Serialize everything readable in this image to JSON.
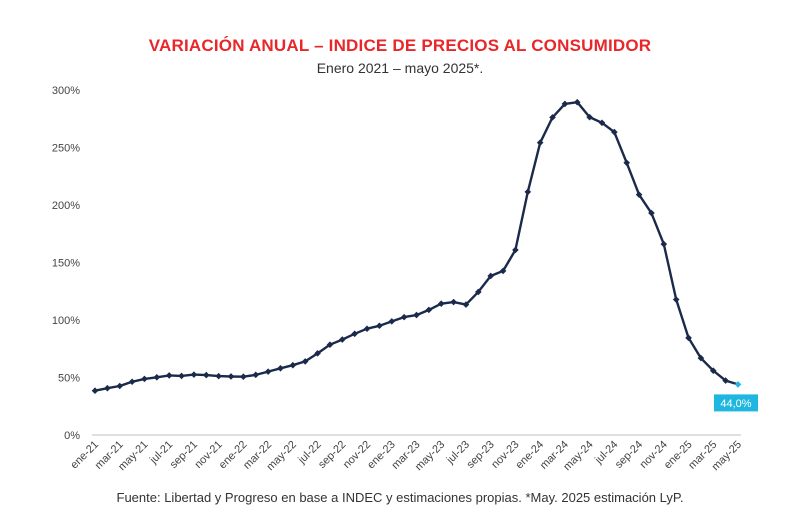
{
  "chart_data": {
    "type": "line",
    "title": "VARIACIÓN ANUAL – INDICE DE PRECIOS AL CONSUMIDOR",
    "subtitle": "Enero 2021 – mayo 2025*.",
    "source": "Fuente: Libertad y Progreso en base a INDEC y estimaciones propias. *May. 2025 estimación LyP.",
    "ylim": [
      0,
      300
    ],
    "ytick_labels": [
      "0%",
      "50%",
      "100%",
      "150%",
      "200%",
      "250%",
      "300%"
    ],
    "xtick_labels": [
      "ene-21",
      "mar-21",
      "may-21",
      "jul-21",
      "sep-21",
      "nov-21",
      "ene-22",
      "mar-22",
      "may-22",
      "jul-22",
      "sep-22",
      "nov-22",
      "ene-23",
      "mar-23",
      "may-23",
      "jul-23",
      "sep-23",
      "nov-23",
      "ene-24",
      "mar-24",
      "may-24",
      "jul-24",
      "sep-24",
      "nov-24",
      "ene-25",
      "mar-25",
      "may-25"
    ],
    "grid": false,
    "line_color": "#1b2a4a",
    "highlight_color": "#1fb6e0",
    "series": [
      {
        "values": [
          38.5,
          40.7,
          42.6,
          46.3,
          48.8,
          50.2,
          51.8,
          51.4,
          52.5,
          52.1,
          51.2,
          50.9,
          50.7,
          52.3,
          55.1,
          58.0,
          60.7,
          64.0,
          71.0,
          78.5,
          83.0,
          88.0,
          92.4,
          95.0,
          98.8,
          102.5,
          104.3,
          108.8,
          114.2,
          115.6,
          113.4,
          124.4,
          138.3,
          142.7,
          160.9,
          211.4,
          254.2,
          276.2,
          287.9,
          289.4,
          276.4,
          271.5,
          263.4,
          236.7,
          209.0,
          193.0,
          166.0,
          117.8,
          84.5,
          66.9,
          55.9,
          47.3,
          44.0
        ]
      }
    ],
    "highlight": {
      "index": 52,
      "label": "44,0%"
    }
  }
}
